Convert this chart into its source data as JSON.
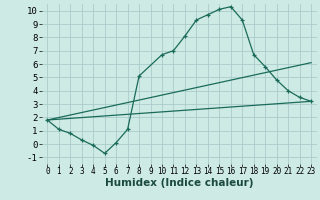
{
  "xlabel": "Humidex (Indice chaleur)",
  "bg_color": "#ceeae4",
  "grid_color": "#aacccc",
  "line_color": "#1a6b5a",
  "curve1_x": [
    0,
    1,
    2,
    3,
    4,
    5,
    6,
    7,
    8,
    10,
    11,
    12,
    13,
    14,
    15,
    16,
    17,
    18,
    19,
    20,
    21,
    22,
    23
  ],
  "curve1_y": [
    1.8,
    1.1,
    0.8,
    0.3,
    -0.1,
    -0.7,
    0.1,
    1.1,
    5.1,
    6.7,
    7.0,
    8.1,
    9.3,
    9.7,
    10.1,
    10.3,
    9.3,
    6.7,
    5.8,
    4.8,
    4.0,
    3.5,
    3.2
  ],
  "curve2_x": [
    0,
    23
  ],
  "curve2_y": [
    1.8,
    6.1
  ],
  "curve3_x": [
    0,
    23
  ],
  "curve3_y": [
    1.8,
    3.2
  ],
  "xlim": [
    -0.5,
    23.5
  ],
  "ylim": [
    -1.5,
    10.5
  ],
  "xticks": [
    0,
    1,
    2,
    3,
    4,
    5,
    6,
    7,
    8,
    9,
    10,
    11,
    12,
    13,
    14,
    15,
    16,
    17,
    18,
    19,
    20,
    21,
    22,
    23
  ],
  "yticks": [
    -1,
    0,
    1,
    2,
    3,
    4,
    5,
    6,
    7,
    8,
    9,
    10
  ],
  "xtick_fontsize": 5.5,
  "ytick_fontsize": 6.5,
  "xlabel_fontsize": 7.5
}
